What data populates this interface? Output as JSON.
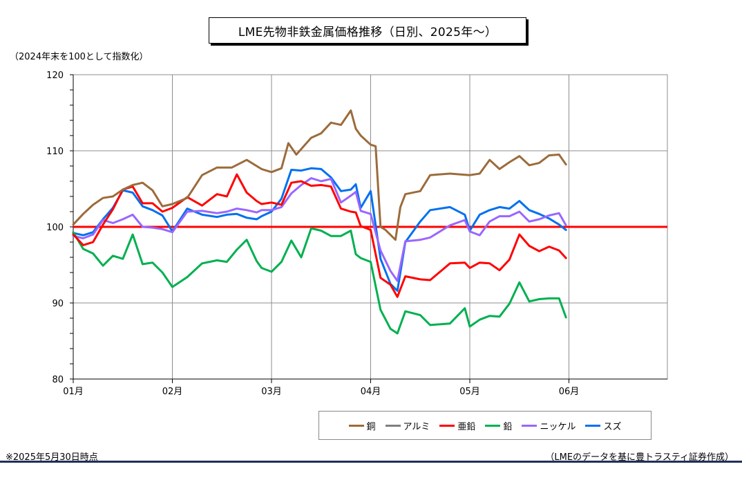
{
  "title": "LME先物非鉄金属価格推移（日別、2025年～）",
  "y_unit_note": "（2024年末を100として指数化）",
  "footnote": "※2025年5月30日時点",
  "source": "（LMEのデータを基に豊トラスティ証券作成）",
  "chart_data": {
    "type": "line",
    "title": "LME先物非鉄金属価格推移（日別、2025年～）",
    "ylabel": "（2024年末を100として指数化）",
    "xlabel": "",
    "ylim": [
      80,
      120
    ],
    "yticks": [
      80,
      90,
      100,
      110,
      120
    ],
    "xlim": [
      1,
      7
    ],
    "xticks": [
      {
        "value": 1,
        "label": "01月"
      },
      {
        "value": 2,
        "label": "02月"
      },
      {
        "value": 3,
        "label": "03月"
      },
      {
        "value": 4,
        "label": "04月"
      },
      {
        "value": 5,
        "label": "05月"
      },
      {
        "value": 6,
        "label": "06月"
      }
    ],
    "grid": true,
    "legend_position": "bottom",
    "reference_line": {
      "y": 100,
      "color": "#ff0000"
    },
    "series": [
      {
        "name": "銅",
        "color": "#9c6b3b",
        "x": [
          1.0,
          1.1,
          1.2,
          1.3,
          1.4,
          1.5,
          1.6,
          1.7,
          1.8,
          1.9,
          2.0,
          2.15,
          2.3,
          2.45,
          2.6,
          2.75,
          2.9,
          3.0,
          3.1,
          3.17,
          3.25,
          3.4,
          3.5,
          3.6,
          3.7,
          3.8,
          3.85,
          3.9,
          4.0,
          4.05,
          4.1,
          4.15,
          4.25,
          4.3,
          4.35,
          4.5,
          4.6,
          4.8,
          5.0,
          5.1,
          5.2,
          5.3,
          5.4,
          5.5,
          5.6,
          5.7,
          5.8,
          5.9,
          5.97
        ],
        "y": [
          100.3,
          101.7,
          102.9,
          103.8,
          104.0,
          104.9,
          105.5,
          105.8,
          104.8,
          102.7,
          103.0,
          103.8,
          106.8,
          107.8,
          107.8,
          108.8,
          107.6,
          107.2,
          107.7,
          111.0,
          109.5,
          111.7,
          112.3,
          113.7,
          113.4,
          115.3,
          112.9,
          112.0,
          110.8,
          110.6,
          100.0,
          99.6,
          98.3,
          102.6,
          104.3,
          104.7,
          106.8,
          107.0,
          106.8,
          107.0,
          108.8,
          107.6,
          108.5,
          109.3,
          108.1,
          108.4,
          109.4,
          109.5,
          108.2
        ]
      },
      {
        "name": "アルミ",
        "color": "#7f7f7f",
        "x": [],
        "y": []
      },
      {
        "name": "亜鉛",
        "color": "#ff0000",
        "x": [
          1.0,
          1.1,
          1.2,
          1.3,
          1.4,
          1.5,
          1.6,
          1.7,
          1.8,
          1.9,
          2.0,
          2.15,
          2.3,
          2.45,
          2.55,
          2.65,
          2.75,
          2.85,
          2.9,
          3.0,
          3.1,
          3.2,
          3.3,
          3.4,
          3.5,
          3.6,
          3.7,
          3.8,
          3.85,
          3.9,
          4.0,
          4.1,
          4.2,
          4.27,
          4.35,
          4.5,
          4.6,
          4.8,
          4.95,
          5.0,
          5.1,
          5.2,
          5.3,
          5.4,
          5.5,
          5.6,
          5.7,
          5.8,
          5.9,
          5.97
        ],
        "y": [
          99.0,
          97.6,
          98.0,
          100.3,
          102.3,
          104.9,
          105.3,
          103.1,
          103.1,
          102.0,
          102.5,
          103.9,
          102.8,
          104.3,
          104.0,
          106.9,
          104.5,
          103.4,
          103.0,
          103.2,
          102.9,
          105.8,
          106.0,
          105.4,
          105.5,
          105.3,
          102.4,
          102.0,
          101.9,
          100.1,
          99.6,
          93.3,
          92.4,
          90.8,
          93.5,
          93.1,
          93.0,
          95.2,
          95.3,
          94.6,
          95.3,
          95.2,
          94.3,
          95.7,
          99.0,
          97.5,
          96.8,
          97.4,
          96.9,
          95.9
        ]
      },
      {
        "name": "鉛",
        "color": "#00b050",
        "x": [
          1.0,
          1.1,
          1.2,
          1.3,
          1.4,
          1.5,
          1.6,
          1.7,
          1.8,
          1.9,
          2.0,
          2.15,
          2.3,
          2.45,
          2.55,
          2.65,
          2.75,
          2.85,
          2.9,
          3.0,
          3.1,
          3.2,
          3.3,
          3.4,
          3.5,
          3.6,
          3.7,
          3.8,
          3.85,
          3.9,
          4.0,
          4.1,
          4.2,
          4.27,
          4.35,
          4.5,
          4.6,
          4.8,
          4.95,
          5.0,
          5.1,
          5.2,
          5.3,
          5.4,
          5.5,
          5.6,
          5.7,
          5.8,
          5.9,
          5.97
        ],
        "y": [
          99.3,
          97.1,
          96.5,
          94.9,
          96.2,
          95.8,
          99.0,
          95.1,
          95.3,
          94.0,
          92.1,
          93.4,
          95.2,
          95.6,
          95.4,
          97.0,
          98.3,
          95.5,
          94.6,
          94.1,
          95.4,
          98.2,
          96.0,
          99.8,
          99.5,
          98.8,
          98.8,
          99.5,
          96.4,
          95.9,
          95.4,
          89.1,
          86.6,
          86.0,
          88.9,
          88.4,
          87.1,
          87.3,
          89.3,
          86.9,
          87.8,
          88.3,
          88.2,
          89.9,
          92.7,
          90.2,
          90.5,
          90.6,
          90.6,
          88.1
        ]
      },
      {
        "name": "ニッケル",
        "color": "#9966ff",
        "x": [
          1.0,
          1.1,
          1.2,
          1.3,
          1.4,
          1.5,
          1.6,
          1.7,
          1.8,
          1.9,
          2.0,
          2.15,
          2.3,
          2.45,
          2.55,
          2.65,
          2.75,
          2.85,
          2.9,
          3.0,
          3.1,
          3.2,
          3.3,
          3.4,
          3.5,
          3.6,
          3.7,
          3.8,
          3.85,
          3.9,
          4.0,
          4.1,
          4.2,
          4.27,
          4.35,
          4.5,
          4.6,
          4.8,
          4.95,
          5.0,
          5.1,
          5.2,
          5.3,
          5.4,
          5.5,
          5.6,
          5.7,
          5.8,
          5.9,
          5.97
        ],
        "y": [
          98.8,
          98.5,
          99.0,
          100.9,
          100.5,
          101.0,
          101.6,
          100.0,
          99.9,
          99.7,
          99.3,
          102.0,
          102.1,
          101.8,
          102.0,
          102.4,
          102.2,
          101.9,
          102.2,
          102.2,
          102.6,
          104.4,
          105.5,
          106.4,
          106.0,
          106.3,
          103.2,
          104.1,
          104.6,
          102.1,
          101.7,
          96.9,
          94.2,
          92.9,
          98.1,
          98.3,
          98.6,
          100.2,
          100.9,
          99.4,
          98.9,
          100.7,
          101.4,
          101.4,
          102.0,
          100.7,
          101.0,
          101.5,
          101.8,
          100.2
        ]
      },
      {
        "name": "スズ",
        "color": "#0070f0",
        "x": [
          1.0,
          1.1,
          1.2,
          1.3,
          1.4,
          1.5,
          1.6,
          1.7,
          1.8,
          1.9,
          2.0,
          2.15,
          2.3,
          2.45,
          2.55,
          2.65,
          2.75,
          2.85,
          2.9,
          3.0,
          3.1,
          3.2,
          3.3,
          3.4,
          3.5,
          3.6,
          3.7,
          3.8,
          3.85,
          3.9,
          4.0,
          4.1,
          4.2,
          4.27,
          4.35,
          4.5,
          4.6,
          4.8,
          4.95,
          5.0,
          5.1,
          5.2,
          5.3,
          5.4,
          5.5,
          5.6,
          5.7,
          5.8,
          5.9,
          5.97
        ],
        "y": [
          99.2,
          98.9,
          99.3,
          101.0,
          102.5,
          104.8,
          104.5,
          102.7,
          102.2,
          101.5,
          99.4,
          102.4,
          101.6,
          101.3,
          101.6,
          101.7,
          101.2,
          101.0,
          101.4,
          102.0,
          103.7,
          107.5,
          107.4,
          107.7,
          107.6,
          106.5,
          104.7,
          104.9,
          105.6,
          102.5,
          104.7,
          95.8,
          92.5,
          91.6,
          98.0,
          100.7,
          102.2,
          102.6,
          101.6,
          99.5,
          101.6,
          102.2,
          102.6,
          102.4,
          103.4,
          102.2,
          101.7,
          101.1,
          100.3,
          99.6
        ]
      }
    ]
  }
}
